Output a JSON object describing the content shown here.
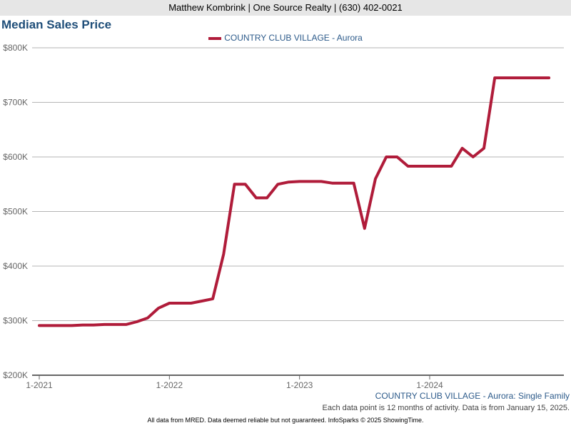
{
  "header": {
    "text": "Matthew Kombrink | One Source Realty | (630) 402-0021"
  },
  "title": "Median Sales Price",
  "colors": {
    "line": "#b01c3a",
    "title": "#1f4e79"
  },
  "footer": {
    "series_label": "COUNTRY CLUB VILLAGE - Aurora: Single Family",
    "note": "Each data point is 12 months of activity. Data is from January 15, 2025.",
    "disclaimer": "All data from MRED. Data deemed reliable but not guaranteed. InfoSparks © 2025 ShowingTime."
  },
  "chart_data": {
    "type": "line",
    "title": "Median Sales Price",
    "legend": "top-center",
    "x_ticks": [
      "1-2021",
      "1-2022",
      "1-2023",
      "1-2024"
    ],
    "y_ticks": [
      "$200K",
      "$300K",
      "$400K",
      "$500K",
      "$600K",
      "$700K",
      "$800K"
    ],
    "ylim": [
      200000,
      800000
    ],
    "series": [
      {
        "name": "COUNTRY CLUB VILLAGE - Aurora",
        "x_start": "2021-01",
        "x_step": "month",
        "values": [
          291000,
          291000,
          291000,
          291000,
          292000,
          292000,
          293000,
          293000,
          293000,
          298000,
          305000,
          323000,
          332000,
          332000,
          332000,
          336000,
          340000,
          422000,
          550000,
          550000,
          525000,
          525000,
          550000,
          554000,
          555000,
          555000,
          555000,
          552000,
          552000,
          552000,
          469000,
          560000,
          600000,
          600000,
          583000,
          583000,
          583000,
          583000,
          583000,
          616000,
          600000,
          616000,
          745000,
          745000,
          745000,
          745000,
          745000,
          745000
        ]
      }
    ]
  }
}
